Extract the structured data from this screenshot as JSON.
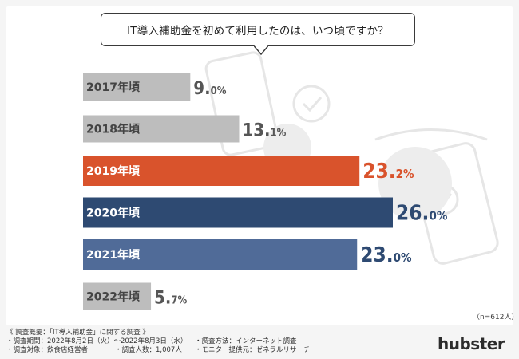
{
  "question": "IT導入補助金を初めて利用したのは、いつ頃ですか？",
  "sample_note": "（n=612人）",
  "footer": {
    "heading": "《 調査概要：「IT導入補助金」に関する調査 》",
    "period": "・調査期間：2022年8月2日（火）〜2022年8月3日（水）",
    "method": "・調査方法：インターネット調査",
    "target": "・調査対象：飲食店経営者",
    "count": "・調査人数：1,007人",
    "panel": "・モニター提供元：ゼネラルリサーチ"
  },
  "logo": "hubster",
  "colors": {
    "gray": "#bdbdbd",
    "highlight": "#d9532c",
    "dark_navy": "#2e4a72",
    "mid_navy": "#506b98",
    "gray_text": "#555555"
  },
  "chart_data": {
    "type": "bar",
    "orientation": "horizontal",
    "title": "IT導入補助金を初めて利用したのは、いつ頃ですか？",
    "categories": [
      "2017年頃",
      "2018年頃",
      "2019年頃",
      "2020年頃",
      "2021年頃",
      "2022年頃"
    ],
    "values": [
      9.0,
      13.1,
      23.2,
      26.0,
      23.0,
      5.7
    ],
    "value_labels": [
      {
        "main": "9.",
        "tail": "0%"
      },
      {
        "main": "13.",
        "tail": "1%"
      },
      {
        "main": "23.",
        "tail": "2%"
      },
      {
        "main": "26.",
        "tail": "0%"
      },
      {
        "main": "23.",
        "tail": "0%"
      },
      {
        "main": "5.",
        "tail": "7%"
      }
    ],
    "bar_colors": [
      "#bdbdbd",
      "#bdbdbd",
      "#d9532c",
      "#2e4a72",
      "#506b98",
      "#bdbdbd"
    ],
    "label_colors": [
      "#555555",
      "#555555",
      "#d9532c",
      "#2e4a72",
      "#2e4a72",
      "#555555"
    ],
    "xlim": [
      0,
      26
    ],
    "grid": false,
    "legend": "none"
  }
}
